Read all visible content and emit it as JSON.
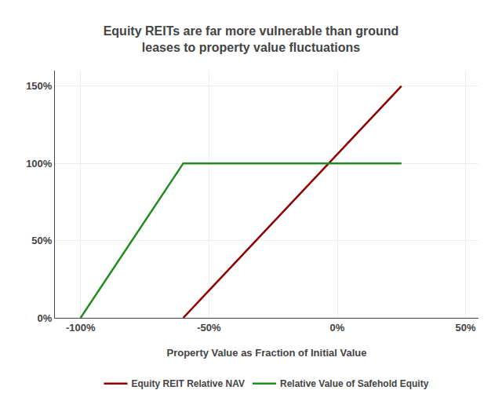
{
  "chart_data": {
    "type": "line",
    "title": "Equity REITs are far more vulnerable than ground\nleases to property value fluctuations",
    "xlabel": "Property Value as Fraction of Initial Value",
    "xlim": [
      -1.1,
      0.55
    ],
    "ylim": [
      0,
      1.6
    ],
    "xticks": [
      {
        "value": -1.0,
        "label": "-100%"
      },
      {
        "value": -0.5,
        "label": "-50%"
      },
      {
        "value": 0.0,
        "label": "0%"
      },
      {
        "value": 0.5,
        "label": "50%"
      }
    ],
    "yticks": [
      {
        "value": 0.0,
        "label": "0%"
      },
      {
        "value": 0.5,
        "label": "50%"
      },
      {
        "value": 1.0,
        "label": "100%"
      },
      {
        "value": 1.5,
        "label": "150%"
      }
    ],
    "series": [
      {
        "name": "Equity REIT Relative NAV",
        "color": "#8B0000",
        "x": [
          -0.6,
          0.25
        ],
        "values": [
          0.0,
          1.5
        ]
      },
      {
        "name": "Relative Value of Safehold Equity",
        "color": "#228B22",
        "x": [
          -1.0,
          -0.6,
          0.25
        ],
        "values": [
          0.0,
          1.0,
          1.0
        ]
      }
    ],
    "grid": true,
    "legend": "bottom"
  }
}
